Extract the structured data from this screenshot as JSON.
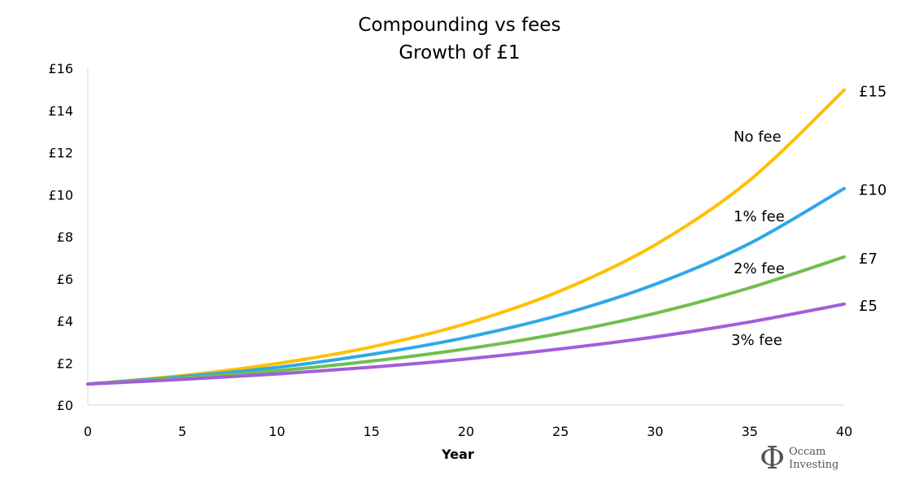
{
  "chart_data": {
    "type": "line",
    "title": "Compounding vs fees",
    "subtitle": "Growth of £1",
    "xlabel": "Year",
    "ylabel": "",
    "xlim": [
      0,
      40
    ],
    "ylim": [
      0,
      16
    ],
    "x_ticks": [
      0,
      5,
      10,
      15,
      20,
      25,
      30,
      35,
      40
    ],
    "y_ticks": [
      "£0",
      "£2",
      "£4",
      "£6",
      "£8",
      "£10",
      "£12",
      "£14",
      "£16"
    ],
    "y_tick_values": [
      0,
      2,
      4,
      6,
      8,
      10,
      12,
      14,
      16
    ],
    "grid": false,
    "legend": "inline labels",
    "x": [
      0,
      5,
      10,
      15,
      20,
      25,
      30,
      35,
      40
    ],
    "series": [
      {
        "name": "No fee",
        "color": "#FFC000",
        "values": [
          1.0,
          1.4,
          1.97,
          2.76,
          3.87,
          5.43,
          7.61,
          10.68,
          14.97
        ],
        "end_label": "£15"
      },
      {
        "name": "1% fee",
        "color": "#2FA8E8",
        "values": [
          1.0,
          1.35,
          1.79,
          2.41,
          3.21,
          4.29,
          5.74,
          7.68,
          10.29
        ],
        "end_label": "£10"
      },
      {
        "name": "2% fee",
        "color": "#70BF4E",
        "values": [
          1.0,
          1.28,
          1.63,
          2.09,
          2.67,
          3.41,
          4.36,
          5.57,
          7.04
        ],
        "end_label": "£7"
      },
      {
        "name": "3% fee",
        "color": "#A25EDB",
        "values": [
          1.0,
          1.22,
          1.48,
          1.8,
          2.19,
          2.67,
          3.24,
          3.95,
          4.8
        ],
        "end_label": "£5"
      }
    ]
  },
  "logo": {
    "symbol": "Φ",
    "line1": "Occam",
    "line2": "Investing"
  }
}
